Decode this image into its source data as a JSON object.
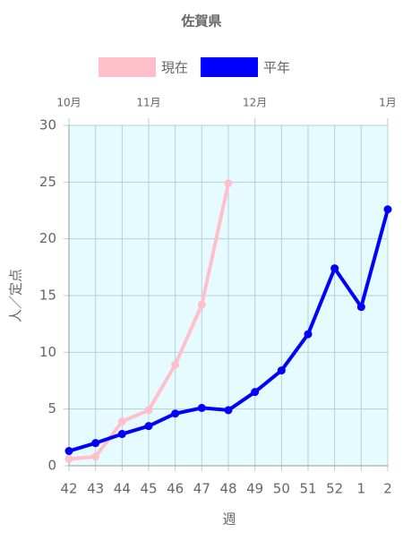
{
  "chart_data": {
    "type": "line",
    "title": "佐賀県",
    "categories": [
      "42",
      "43",
      "44",
      "45",
      "46",
      "47",
      "48",
      "49",
      "50",
      "51",
      "52",
      "1",
      "2"
    ],
    "top_categories": [
      "10月",
      null,
      null,
      "11月",
      null,
      null,
      null,
      "12月",
      null,
      null,
      null,
      null,
      "1月"
    ],
    "series": [
      {
        "name": "現在",
        "color": "#ffc0cb",
        "values": [
          0.6,
          0.8,
          3.9,
          4.9,
          8.9,
          14.2,
          24.9,
          null,
          null,
          null,
          null,
          null,
          null
        ]
      },
      {
        "name": "平年",
        "color": "#0000ff",
        "values": [
          1.3,
          2.0,
          2.8,
          3.5,
          4.6,
          5.1,
          4.9,
          6.5,
          8.4,
          11.6,
          17.4,
          14.0,
          22.6
        ]
      }
    ],
    "ylim": [
      0,
      30
    ],
    "yticks": [
      0,
      5,
      10,
      15,
      20,
      25,
      30
    ],
    "x_label": "週",
    "y_label": "人／定点",
    "grid": true,
    "legend": "top",
    "background": "#e6fbff"
  }
}
